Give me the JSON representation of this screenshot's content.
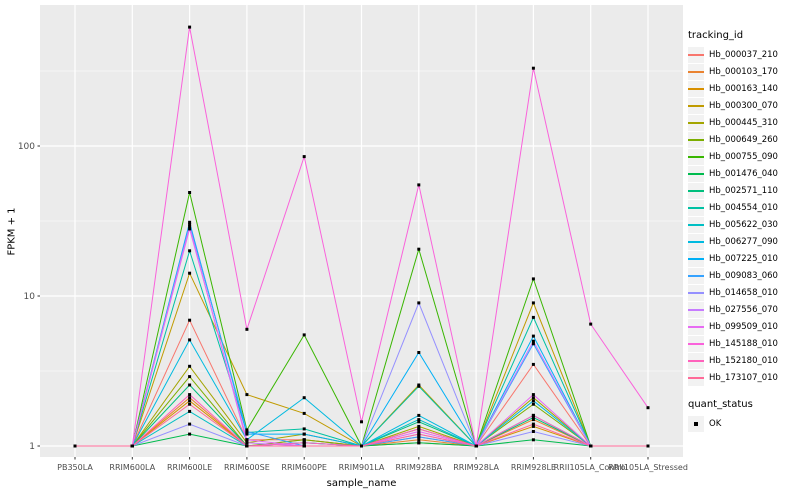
{
  "chart_data": {
    "type": "line",
    "title": "",
    "xlabel": "sample_name",
    "ylabel": "FPKM + 1",
    "y_scale": "log10",
    "ylim": [
      0.93,
      900
    ],
    "grid": "on",
    "panel_bg": "#EBEBEB",
    "grid_color": "#FFFFFF",
    "tick_label_color": "#4D4D4D",
    "marker_color": "#000000",
    "y_ticks": [
      1,
      10,
      100
    ],
    "y_tick_labels": [
      "1",
      "10",
      "100"
    ],
    "y_minor_ticks": [
      3.162,
      31.62,
      316.2
    ],
    "categories": [
      "PB350LA",
      "RRIM600LA",
      "RRIM600LE",
      "RRIM600SE",
      "RRIM600PE",
      "RRIM901LA",
      "RRIM928BA",
      "RRIM928LA",
      "RRIM928LE",
      "RRII105LA_Control",
      "RRII105LA_Stressed"
    ],
    "legend": {
      "title": "tracking_id",
      "position": "right"
    },
    "quant_legend": {
      "title": "quant_status",
      "items": [
        {
          "label": "OK",
          "marker": "black-square"
        }
      ]
    },
    "series": [
      {
        "name": "Hb_000037_210",
        "color": "#F8766D",
        "values": [
          1,
          1,
          6.9,
          1.1,
          1.1,
          1,
          1.15,
          1,
          3.5,
          1,
          1
        ]
      },
      {
        "name": "Hb_000103_170",
        "color": "#EA8331",
        "values": [
          1,
          1,
          2.1,
          1,
          1.1,
          1,
          1.1,
          1,
          1.5,
          1,
          1
        ]
      },
      {
        "name": "Hb_000163_140",
        "color": "#D89000",
        "values": [
          1,
          1,
          2.0,
          1,
          1,
          1,
          1.05,
          1,
          1.35,
          1,
          1
        ]
      },
      {
        "name": "Hb_000300_070",
        "color": "#C09B00",
        "values": [
          1,
          1,
          14.2,
          2.2,
          1.65,
          1,
          2.55,
          1,
          9.0,
          1,
          1
        ]
      },
      {
        "name": "Hb_000445_310",
        "color": "#A3A500",
        "values": [
          1,
          1,
          3.4,
          1.05,
          1.2,
          1,
          1.35,
          1,
          2.1,
          1,
          1
        ]
      },
      {
        "name": "Hb_000649_260",
        "color": "#7CAE00",
        "values": [
          1,
          1,
          2.9,
          1,
          1.1,
          1,
          1.3,
          1,
          1.9,
          1,
          1
        ]
      },
      {
        "name": "Hb_000755_090",
        "color": "#39B600",
        "values": [
          1,
          1,
          49,
          1.28,
          5.5,
          1,
          20.5,
          1,
          13,
          1,
          1
        ]
      },
      {
        "name": "Hb_001476_040",
        "color": "#00BB4E",
        "values": [
          1,
          1,
          1.2,
          1,
          1,
          1,
          1.05,
          1,
          1.1,
          1,
          1
        ]
      },
      {
        "name": "Hb_002571_110",
        "color": "#00BF7D",
        "values": [
          1,
          1,
          2.55,
          1,
          1.05,
          1,
          1.45,
          1,
          1.55,
          1,
          1
        ]
      },
      {
        "name": "Hb_004554_010",
        "color": "#00C1A3",
        "values": [
          1,
          1,
          20,
          1.23,
          1.3,
          1,
          2.5,
          1,
          7.2,
          1,
          1
        ]
      },
      {
        "name": "Hb_005622_030",
        "color": "#00BFC4",
        "values": [
          1,
          1,
          1.7,
          1,
          1.05,
          1,
          1.5,
          1,
          1.6,
          1,
          1
        ]
      },
      {
        "name": "Hb_006277_090",
        "color": "#00BAE0",
        "values": [
          1,
          1,
          5.1,
          1.1,
          2.1,
          1,
          1.6,
          1,
          2.0,
          1,
          1
        ]
      },
      {
        "name": "Hb_007225_010",
        "color": "#00B0F6",
        "values": [
          1,
          1,
          31,
          1.2,
          1.2,
          1,
          4.2,
          1,
          5.4,
          1,
          1
        ]
      },
      {
        "name": "Hb_009083_060",
        "color": "#35A2FF",
        "values": [
          1,
          1,
          30,
          1.25,
          1,
          1,
          1.15,
          1,
          4.8,
          1,
          1
        ]
      },
      {
        "name": "Hb_014658_010",
        "color": "#9590FF",
        "values": [
          1,
          1,
          1.4,
          1,
          1,
          1,
          9.0,
          1,
          1.25,
          1,
          1
        ]
      },
      {
        "name": "Hb_027556_070",
        "color": "#C77CFF",
        "values": [
          1,
          1,
          29,
          1.05,
          1,
          1,
          1.2,
          1,
          5.0,
          1,
          1
        ]
      },
      {
        "name": "Hb_099509_010",
        "color": "#E76BF3",
        "values": [
          1,
          1,
          28,
          1.1,
          1,
          1,
          1.25,
          1,
          2.2,
          1,
          1
        ]
      },
      {
        "name": "Hb_145188_010",
        "color": "#FA62DB",
        "values": [
          1,
          1,
          620,
          6.0,
          85,
          1.45,
          55,
          1,
          330,
          6.5,
          1.8
        ]
      },
      {
        "name": "Hb_152180_010",
        "color": "#FF62BC",
        "values": [
          1,
          1,
          2.2,
          1,
          1.05,
          1,
          1.3,
          1,
          1.6,
          1,
          1
        ]
      },
      {
        "name": "Hb_173107_010",
        "color": "#FF6A98",
        "values": [
          1,
          1,
          1.9,
          1,
          1,
          1,
          1.2,
          1,
          1.4,
          1,
          1
        ]
      }
    ]
  }
}
